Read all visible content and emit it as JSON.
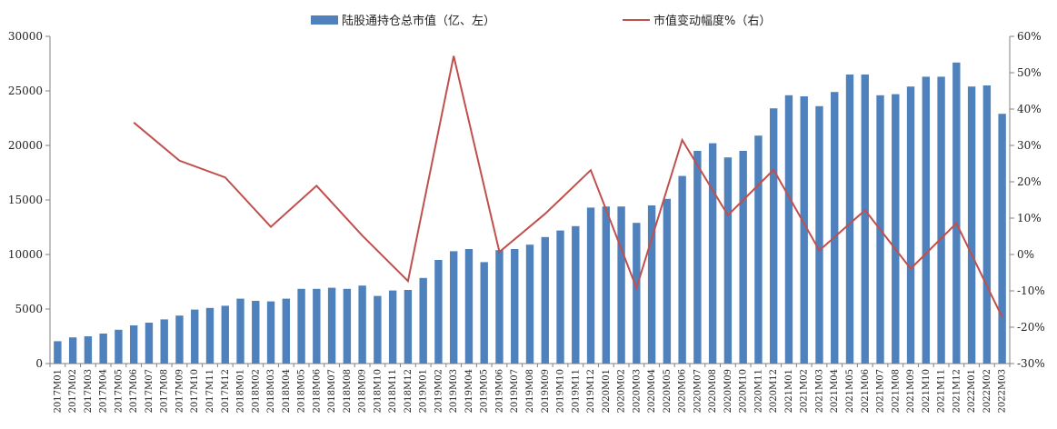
{
  "chart_data": {
    "type": "bar+line",
    "title": "",
    "xlabel": "",
    "legend": {
      "placement": "top",
      "bar_label": "陆股通持仓总市值（亿、左）",
      "line_label": "市值变动幅度%（右）"
    },
    "colors": {
      "bar": "#4F81BD",
      "line": "#C0504D",
      "axis": "#808080"
    },
    "left_axis": {
      "ylim": [
        0,
        30000
      ],
      "ticks": [
        0,
        5000,
        10000,
        15000,
        20000,
        25000,
        30000
      ],
      "tick_labels": [
        "0",
        "5000",
        "10000",
        "15000",
        "20000",
        "25000",
        "30000"
      ]
    },
    "right_axis": {
      "ylim": [
        -30,
        60
      ],
      "ticks": [
        -30,
        -20,
        -10,
        0,
        10,
        20,
        30,
        40,
        50,
        60
      ],
      "tick_labels": [
        "-30%",
        "-20%",
        "-10%",
        "0%",
        "10%",
        "20%",
        "30%",
        "40%",
        "50%",
        "60%"
      ]
    },
    "categories": [
      "2017M01",
      "2017M02",
      "2017M03",
      "2017M04",
      "2017M05",
      "2017M06",
      "2017M07",
      "2017M08",
      "2017M09",
      "2017M10",
      "2017M11",
      "2017M12",
      "2018M01",
      "2018M02",
      "2018M03",
      "2018M04",
      "2018M05",
      "2018M06",
      "2018M07",
      "2018M08",
      "2018M09",
      "2018M10",
      "2018M11",
      "2018M12",
      "2019M01",
      "2019M02",
      "2019M03",
      "2019M04",
      "2019M05",
      "2019M06",
      "2019M07",
      "2019M08",
      "2019M09",
      "2019M10",
      "2019M11",
      "2019M12",
      "2020M01",
      "2020M02",
      "2020M03",
      "2020M04",
      "2020M05",
      "2020M06",
      "2020M07",
      "2020M08",
      "2020M09",
      "2020M10",
      "2020M11",
      "2020M12",
      "2021M01",
      "2021M02",
      "2021M03",
      "2021M04",
      "2021M05",
      "2021M06",
      "2021M07",
      "2021M08",
      "2021M09",
      "2021M10",
      "2021M11",
      "2021M12",
      "2022M01",
      "2022M02",
      "2022M03"
    ],
    "series": [
      {
        "name": "陆股通持仓总市值（亿、左）",
        "type": "bar",
        "axis": "left",
        "values": [
          2050,
          2400,
          2500,
          2750,
          3100,
          3500,
          3750,
          4050,
          4400,
          4950,
          5100,
          5300,
          5950,
          5750,
          5700,
          5950,
          6850,
          6850,
          6950,
          6850,
          7150,
          6200,
          6700,
          6750,
          7850,
          9500,
          10300,
          10500,
          9300,
          10400,
          10500,
          10900,
          11600,
          12200,
          12600,
          14300,
          14400,
          14400,
          12900,
          14500,
          15100,
          17200,
          19500,
          20200,
          18900,
          19500,
          20900,
          23400,
          24600,
          24500,
          23600,
          24900,
          26500,
          26500,
          24600,
          24700,
          25400,
          26300,
          26300,
          27600,
          25400,
          25500,
          22900
        ]
      },
      {
        "name": "市值变动幅度%（右）",
        "type": "line",
        "axis": "right",
        "x": [
          "2017M06",
          "2017M09",
          "2017M12",
          "2018M03",
          "2018M06",
          "2018M09",
          "2018M12",
          "2019M03",
          "2019M06",
          "2019M09",
          "2019M12",
          "2020M03",
          "2020M06",
          "2020M09",
          "2020M12",
          "2021M03",
          "2021M06",
          "2021M09",
          "2021M12",
          "2022M03"
        ],
        "values": [
          36.3,
          25.8,
          21.2,
          7.6,
          18.9,
          5.2,
          -7.3,
          54.6,
          0.7,
          11.2,
          23.2,
          -9.2,
          31.5,
          10.8,
          23.3,
          1.1,
          12.2,
          -3.9,
          8.6,
          -17.2
        ]
      }
    ]
  }
}
